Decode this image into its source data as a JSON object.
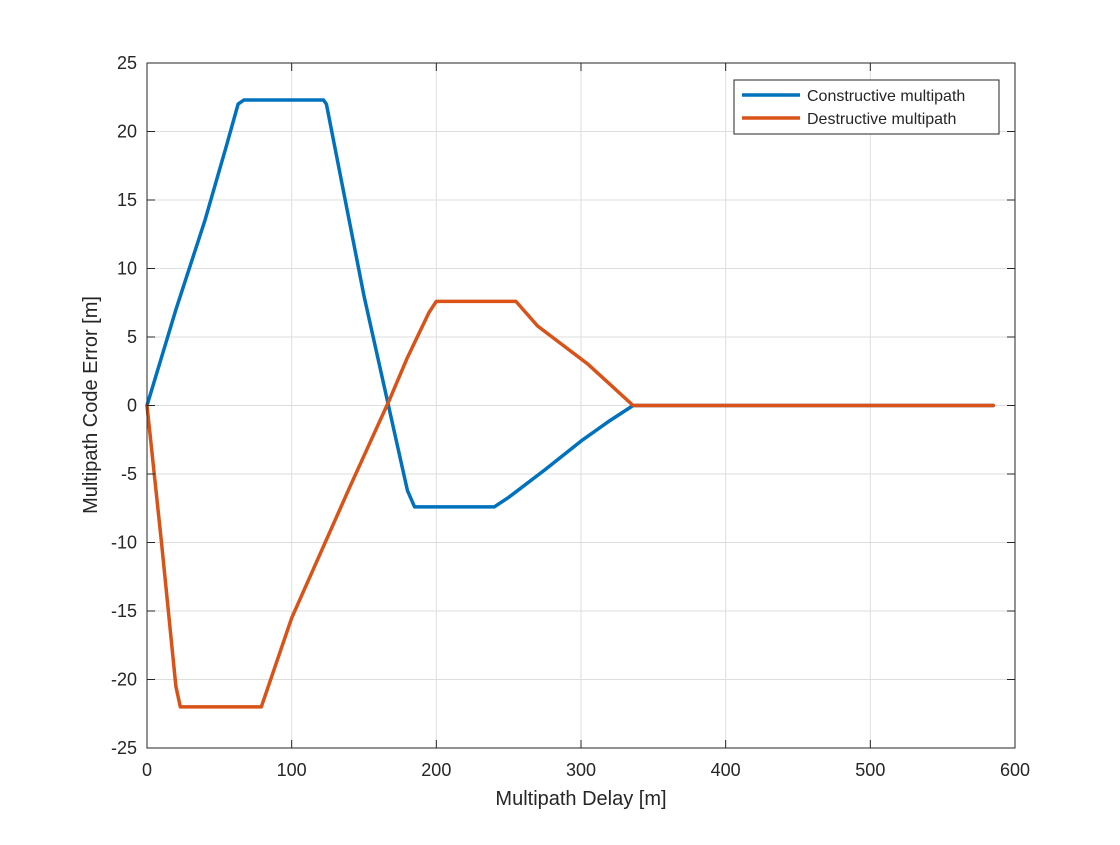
{
  "chart_data": {
    "type": "line",
    "xlabel": "Multipath Delay [m]",
    "ylabel": "Multipath Code Error [m]",
    "xlim": [
      0,
      600
    ],
    "ylim": [
      -25,
      25
    ],
    "xticks": [
      0,
      100,
      200,
      300,
      400,
      500,
      600
    ],
    "yticks": [
      -25,
      -20,
      -15,
      -10,
      -5,
      0,
      5,
      10,
      15,
      20,
      25
    ],
    "grid": true,
    "legend_position": "top-right",
    "series": [
      {
        "name": "Constructive multipath",
        "color": "#0072BD",
        "x": [
          0,
          20,
          40,
          55,
          63,
          67,
          122,
          124,
          150,
          180,
          185,
          240,
          250,
          275,
          300,
          320,
          336,
          585
        ],
        "y": [
          0,
          7,
          13.5,
          19,
          22,
          22.3,
          22.3,
          22.0,
          8.0,
          -6.2,
          -7.4,
          -7.4,
          -6.7,
          -4.7,
          -2.6,
          -1.1,
          0,
          0
        ]
      },
      {
        "name": "Destructive multipath",
        "color": "#D95319",
        "x": [
          0,
          10,
          20,
          23,
          25,
          79,
          100,
          140,
          168,
          180,
          195,
          200,
          255,
          270,
          305,
          336,
          585
        ],
        "y": [
          0,
          -10,
          -20.5,
          -22.0,
          -22.0,
          -22.0,
          -15.5,
          -6.0,
          0.5,
          3.5,
          6.8,
          7.6,
          7.6,
          5.8,
          3.0,
          0,
          0
        ]
      }
    ]
  }
}
